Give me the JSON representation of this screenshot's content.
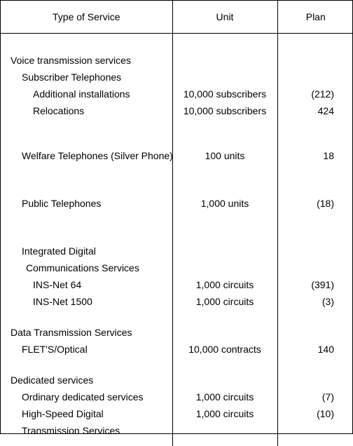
{
  "header": {
    "col1": "Type of Service",
    "col2": "Unit",
    "col3": "Plan"
  },
  "sections": {
    "voice_header": "Voice transmission services",
    "subscriber_header": "Subscriber Telephones",
    "additional_installations": {
      "label": "Additional installations",
      "unit": "10,000 subscribers",
      "plan": "(212)"
    },
    "relocations": {
      "label": "Relocations",
      "unit": "10,000 subscribers",
      "plan": "424"
    },
    "welfare": {
      "label": "Welfare Telephones (Silver Phone)",
      "unit": "100 units",
      "plan": "18"
    },
    "public": {
      "label": "Public Telephones",
      "unit": "1,000 units",
      "plan": "(18)"
    },
    "idc_line1": "Integrated Digital",
    "idc_line2": " Communications Services",
    "ins64": {
      "label": "INS-Net 64",
      "unit": "1,000 circuits",
      "plan": "(391)"
    },
    "ins1500": {
      "label": "INS-Net 1500",
      "unit": "1,000 circuits",
      "plan": "(3)"
    },
    "data_header": "Data Transmission Services",
    "flets": {
      "label": "FLET'S/Optical",
      "unit": "10,000 contracts",
      "plan": "140"
    },
    "dedicated_header": "Dedicated services",
    "ordinary": {
      "label": "Ordinary dedicated services",
      "unit": "1,000 circuits",
      "plan": "(7)"
    },
    "hsdt_line1": "High-Speed Digital",
    "hsdt_line2": "Transmission Services",
    "hsdt": {
      "unit": "1,000 circuits",
      "plan": "(10)"
    }
  }
}
